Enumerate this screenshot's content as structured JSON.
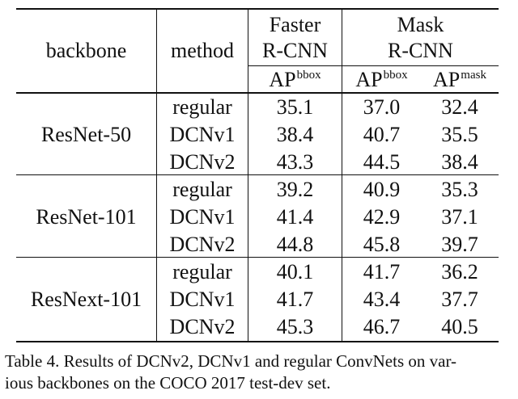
{
  "table": {
    "header": {
      "backbone": "backbone",
      "method": "method",
      "faster_line1": "Faster",
      "faster_line2": "R-CNN",
      "mask_line1": "Mask",
      "mask_line2": "R-CNN",
      "ap_faster": "AP",
      "ap_faster_sup": "bbox",
      "ap_mask_bbox": "AP",
      "ap_mask_bbox_sup": "bbox",
      "ap_mask_mask": "AP",
      "ap_mask_mask_sup": "mask"
    },
    "groups": [
      {
        "backbone": "ResNet-50",
        "rows": [
          {
            "method": "regular",
            "faster_bbox": "35.1",
            "mask_bbox": "37.0",
            "mask_mask": "32.4"
          },
          {
            "method": "DCNv1",
            "faster_bbox": "38.4",
            "mask_bbox": "40.7",
            "mask_mask": "35.5"
          },
          {
            "method": "DCNv2",
            "faster_bbox": "43.3",
            "mask_bbox": "44.5",
            "mask_mask": "38.4"
          }
        ]
      },
      {
        "backbone": "ResNet-101",
        "rows": [
          {
            "method": "regular",
            "faster_bbox": "39.2",
            "mask_bbox": "40.9",
            "mask_mask": "35.3"
          },
          {
            "method": "DCNv1",
            "faster_bbox": "41.4",
            "mask_bbox": "42.9",
            "mask_mask": "37.1"
          },
          {
            "method": "DCNv2",
            "faster_bbox": "44.8",
            "mask_bbox": "45.8",
            "mask_mask": "39.7"
          }
        ]
      },
      {
        "backbone": "ResNext-101",
        "rows": [
          {
            "method": "regular",
            "faster_bbox": "40.1",
            "mask_bbox": "41.7",
            "mask_mask": "36.2"
          },
          {
            "method": "DCNv1",
            "faster_bbox": "41.7",
            "mask_bbox": "43.4",
            "mask_mask": "37.7"
          },
          {
            "method": "DCNv2",
            "faster_bbox": "45.3",
            "mask_bbox": "46.7",
            "mask_mask": "40.5"
          }
        ]
      }
    ]
  },
  "caption": {
    "line1": "Table 4. Results of DCNv2, DCNv1 and regular ConvNets on var-",
    "line2": "ious backbones on the COCO 2017 test-dev set."
  }
}
